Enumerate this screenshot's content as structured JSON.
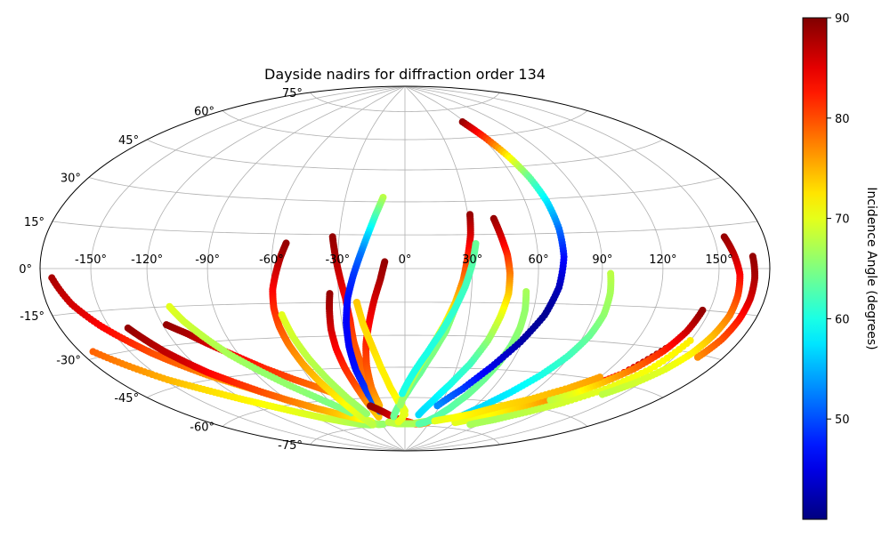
{
  "chart_data": {
    "type": "scatter",
    "title": "Dayside nadirs for diffraction order 134",
    "projection": "hammer",
    "grid": true,
    "xlabel": "",
    "ylabel": "",
    "lon_tick_labels": [
      "-150°",
      "-120°",
      "-90°",
      "-60°",
      "-30°",
      "0°",
      "30°",
      "60°",
      "90°",
      "120°",
      "150°"
    ],
    "lat_tick_labels": [
      "-75°",
      "-60°",
      "-45°",
      "-30°",
      "-15°",
      "0°",
      "15°",
      "30°",
      "45°",
      "60°",
      "75°"
    ],
    "colorbar": {
      "label": "Incidence Angle (degrees)",
      "colormap": "jet",
      "vmin": 40,
      "vmax": 90,
      "tick_labels": [
        "50",
        "60",
        "70",
        "80",
        "90"
      ],
      "tick_values": [
        50,
        60,
        70,
        80,
        90
      ]
    },
    "tracks": [
      {
        "lon": [
          -173,
          -165,
          -155,
          -145,
          -138,
          -130,
          -120,
          -110,
          -100,
          -90,
          -78,
          -66,
          -55,
          -45,
          -35,
          -28
        ],
        "lat": [
          -3,
          -12,
          -20,
          -27,
          -32,
          -37,
          -43,
          -48,
          -53,
          -58,
          -63,
          -67,
          -70,
          -72,
          -74,
          -74
        ],
        "incidence": [
          88,
          86,
          84,
          82,
          80,
          79,
          77,
          76,
          74,
          73,
          72,
          70,
          69,
          68,
          67,
          66
        ]
      },
      {
        "lon": [
          -172,
          -160,
          -148,
          -135,
          -122,
          -110,
          -97,
          -84,
          -70,
          -57,
          -45
        ],
        "lat": [
          -28,
          -35,
          -42,
          -48,
          -54,
          -59,
          -64,
          -68,
          -71,
          -73,
          -74
        ],
        "incidence": [
          79,
          77,
          75,
          73,
          72,
          71,
          70,
          69,
          68,
          67,
          66
        ]
      },
      {
        "lon": [
          -140,
          -135,
          -130,
          -124,
          -118,
          -110,
          -100,
          -90,
          -78,
          -65,
          -52,
          -40
        ],
        "lat": [
          -22,
          -27,
          -32,
          -37,
          -42,
          -47,
          -53,
          -58,
          -63,
          -67,
          -70,
          -72
        ],
        "incidence": [
          89,
          88,
          87,
          86,
          84,
          82,
          80,
          78,
          76,
          74,
          72,
          70
        ]
      },
      {
        "lon": [
          -118,
          -110,
          -102,
          -92,
          -82,
          -70,
          -58,
          -46
        ],
        "lat": [
          -22,
          -26,
          -31,
          -37,
          -43,
          -49,
          -54,
          -59
        ],
        "incidence": [
          89,
          88,
          86,
          84,
          82,
          80,
          78,
          76
        ]
      },
      {
        "lon": [
          -112,
          -108,
          -102,
          -95,
          -86,
          -76,
          -64,
          -52
        ],
        "lat": [
          -15,
          -21,
          -28,
          -36,
          -44,
          -52,
          -60,
          -67
        ],
        "incidence": [
          70,
          69,
          68,
          67,
          66,
          66,
          65,
          65
        ]
      },
      {
        "lon": [
          -54,
          -56,
          -58,
          -60,
          -61,
          -61,
          -60,
          -58,
          -55,
          -51,
          -47,
          -42
        ],
        "lat": [
          11,
          5,
          -2,
          -9,
          -17,
          -25,
          -33,
          -42,
          -51,
          -60,
          -68,
          -74
        ],
        "incidence": [
          89,
          88,
          86,
          84,
          82,
          80,
          78,
          76,
          74,
          72,
          70,
          68
        ]
      },
      {
        "lon": [
          -58,
          -56,
          -53,
          -49,
          -44,
          -38
        ],
        "lat": [
          -20,
          -30,
          -40,
          -50,
          -60,
          -68
        ],
        "incidence": [
          70,
          69,
          68,
          67,
          67,
          66
        ]
      },
      {
        "lon": [
          -34,
          -35,
          -36,
          -36,
          -35,
          -33,
          -31,
          -28
        ],
        "lat": [
          -11,
          -18,
          -27,
          -36,
          -45,
          -54,
          -62,
          -70
        ],
        "incidence": [
          89,
          88,
          86,
          84,
          82,
          80,
          77,
          74
        ]
      },
      {
        "lon": [
          -33,
          -31,
          -29,
          -27,
          -26,
          -26,
          -25,
          -24,
          -22
        ],
        "lat": [
          14,
          5,
          -4,
          -13,
          -23,
          -33,
          -43,
          -53,
          -63
        ],
        "incidence": [
          89,
          88,
          86,
          84,
          82,
          80,
          79,
          78,
          76
        ]
      },
      {
        "lon": [
          -11,
          -14,
          -17,
          -20,
          -23,
          -26,
          -28,
          -29,
          -29,
          -27,
          -24
        ],
        "lat": [
          32,
          24,
          15,
          6,
          -3,
          -13,
          -24,
          -35,
          -46,
          -58,
          -67
        ],
        "incidence": [
          68,
          63,
          57,
          52,
          49,
          47,
          46,
          46,
          47,
          49,
          52
        ]
      },
      {
        "lon": [
          -9,
          -11,
          -14,
          -17,
          -20,
          -22,
          -23,
          -22
        ],
        "lat": [
          3,
          -5,
          -14,
          -24,
          -34,
          -44,
          -55,
          -64
        ],
        "incidence": [
          89,
          88,
          86,
          84,
          82,
          80,
          78,
          75
        ]
      },
      {
        "lon": [
          -22,
          -20,
          -17,
          -14,
          -10,
          -5,
          0
        ],
        "lat": [
          -15,
          -25,
          -35,
          -45,
          -55,
          -63,
          -69
        ],
        "incidence": [
          74,
          73,
          73,
          72,
          72,
          71,
          71
        ]
      },
      {
        "lon": [
          -30,
          -22,
          -14,
          -5,
          4,
          12,
          20,
          28
        ],
        "lat": [
          -64,
          -67,
          -70,
          -72,
          -73,
          -74,
          -74,
          -73
        ],
        "incidence": [
          89,
          88,
          86,
          84,
          82,
          80,
          78,
          76
        ]
      },
      {
        "lon": [
          -20,
          -10,
          0,
          10,
          20,
          30,
          40,
          50
        ],
        "lat": [
          -73,
          -74,
          -74,
          -74,
          -73,
          -72,
          -71,
          -70
        ],
        "incidence": [
          68,
          68,
          67,
          67,
          67,
          66,
          66,
          66
        ]
      },
      {
        "lon": [
          23,
          20,
          15,
          9,
          2,
          -5,
          -12
        ],
        "lat": [
          -18,
          -28,
          -38,
          -48,
          -57,
          -64,
          -70
        ],
        "incidence": [
          66,
          65,
          65,
          64,
          64,
          64,
          64
        ]
      },
      {
        "lon": [
          -5,
          0,
          -3,
          -8
        ],
        "lat": [
          -62,
          -67,
          -71,
          -73
        ],
        "incidence": [
          70,
          70,
          70,
          70
        ]
      },
      {
        "lon": [
          31,
          30,
          28,
          26,
          23,
          19,
          14,
          8,
          2,
          -4
        ],
        "lat": [
          24,
          15,
          5,
          -5,
          -15,
          -25,
          -35,
          -45,
          -55,
          -64
        ],
        "incidence": [
          89,
          86,
          82,
          78,
          74,
          71,
          69,
          68,
          67,
          66
        ]
      },
      {
        "lon": [
          32,
          30,
          27,
          23,
          18,
          12,
          5,
          -2
        ],
        "lat": [
          11,
          2,
          -8,
          -18,
          -28,
          -38,
          -48,
          -58
        ],
        "incidence": [
          64,
          63,
          62,
          61,
          61,
          60,
          60,
          60
        ]
      },
      {
        "lon": [
          42,
          44,
          46,
          47,
          47,
          45,
          42,
          37,
          30,
          22,
          14
        ],
        "lat": [
          22,
          14,
          6,
          -2,
          -11,
          -21,
          -32,
          -43,
          -53,
          -62,
          -69
        ],
        "incidence": [
          89,
          86,
          82,
          78,
          74,
          70,
          66,
          62,
          60,
          58,
          57
        ]
      },
      {
        "lon": [
          55,
          56,
          56,
          55,
          53,
          50,
          46,
          40,
          33,
          25,
          18
        ],
        "lat": [
          -10,
          -18,
          -26,
          -34,
          -42,
          -50,
          -58,
          -65,
          -70,
          -73,
          -74
        ],
        "incidence": [
          67,
          66,
          66,
          65,
          65,
          64,
          64,
          63,
          63,
          63,
          63
        ]
      },
      {
        "lon": [
          58,
          62,
          66,
          69,
          71,
          72,
          72,
          70,
          66,
          59,
          50,
          40,
          28
        ],
        "lat": [
          68,
          60,
          50,
          40,
          29,
          17,
          5,
          -8,
          -20,
          -32,
          -44,
          -55,
          -64
        ],
        "incidence": [
          89,
          82,
          72,
          64,
          58,
          52,
          47,
          43,
          41,
          42,
          45,
          49,
          53
        ]
      },
      {
        "lon": [
          94,
          95,
          95,
          93,
          89,
          83,
          75,
          66,
          57
        ],
        "lat": [
          -2,
          -10,
          -19,
          -28,
          -37,
          -46,
          -55,
          -63,
          -69
        ],
        "incidence": [
          68,
          67,
          66,
          64,
          62,
          60,
          58,
          57,
          57
        ]
      },
      {
        "lon": [
          60,
          70,
          80,
          90,
          100,
          110,
          120,
          130,
          140
        ],
        "lat": [
          -72,
          -70,
          -67,
          -64,
          -60,
          -55,
          -49,
          -42,
          -30
        ],
        "incidence": [
          70,
          70,
          71,
          72,
          74,
          77,
          80,
          84,
          89
        ]
      },
      {
        "lon": [
          80,
          95,
          110,
          122,
          134,
          144,
          150
        ],
        "lat": [
          -72,
          -68,
          -62,
          -56,
          -48,
          -38,
          -26
        ],
        "incidence": [
          67,
          67,
          68,
          69,
          70,
          71,
          72
        ]
      },
      {
        "lon": [
          110,
          118,
          126,
          134,
          140,
          144,
          146
        ],
        "lat": [
          -56,
          -52,
          -46,
          -39,
          -31,
          -23,
          -15
        ],
        "incidence": [
          68,
          70,
          74,
          78,
          82,
          86,
          89
        ]
      },
      {
        "lon": [
          156,
          159,
          162,
          163,
          163,
          161,
          158,
          153,
          146,
          138
        ],
        "lat": [
          11,
          5,
          -2,
          -9,
          -16,
          -23,
          -30,
          -37,
          -44,
          -50
        ],
        "incidence": [
          89,
          87,
          84,
          81,
          78,
          75,
          72,
          70,
          69,
          68
        ]
      },
      {
        "lon": [
          170,
          171,
          171,
          170,
          168,
          164
        ],
        "lat": [
          4,
          -3,
          -10,
          -17,
          -24,
          -31
        ],
        "incidence": [
          89,
          88,
          86,
          83,
          80,
          77
        ]
      },
      {
        "lon": [
          120,
          110,
          95,
          80,
          65,
          50,
          35
        ],
        "lat": [
          -44,
          -50,
          -57,
          -62,
          -67,
          -70,
          -72
        ],
        "incidence": [
          76,
          75,
          74,
          73,
          72,
          71,
          70
        ]
      }
    ]
  }
}
